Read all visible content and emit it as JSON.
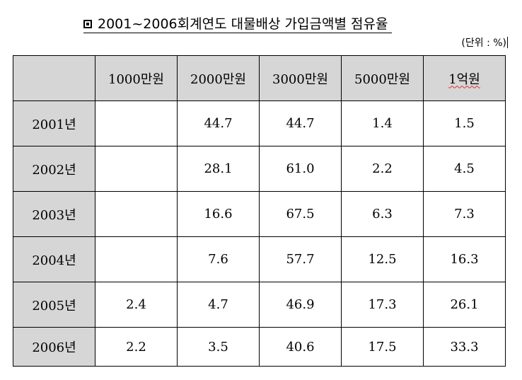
{
  "document": {
    "title": "2001~2006회계연도 대물배상 가입금액별 점유율",
    "unit": "(단위 : %)"
  },
  "table": {
    "corner": "",
    "columns": [
      "1000만원",
      "2000만원",
      "3000만원",
      "5000만원",
      "1억원"
    ],
    "rows": [
      {
        "year": "2001년",
        "values": [
          "",
          "44.7",
          "44.7",
          "1.4",
          "1.5"
        ]
      },
      {
        "year": "2002년",
        "values": [
          "",
          "28.1",
          "61.0",
          "2.2",
          "4.5"
        ]
      },
      {
        "year": "2003년",
        "values": [
          "",
          "16.6",
          "67.5",
          "6.3",
          "7.3"
        ]
      },
      {
        "year": "2004년",
        "values": [
          "",
          "7.6",
          "57.7",
          "12.5",
          "16.3"
        ]
      },
      {
        "year": "2005년",
        "values": [
          "2.4",
          "4.7",
          "46.9",
          "17.3",
          "26.1"
        ]
      },
      {
        "year": "2006년",
        "values": [
          "2.2",
          "3.5",
          "40.6",
          "17.5",
          "33.3"
        ]
      }
    ]
  },
  "colors": {
    "header_fill": "#d6d6d6",
    "spellcheck_underline": "#e03030"
  }
}
